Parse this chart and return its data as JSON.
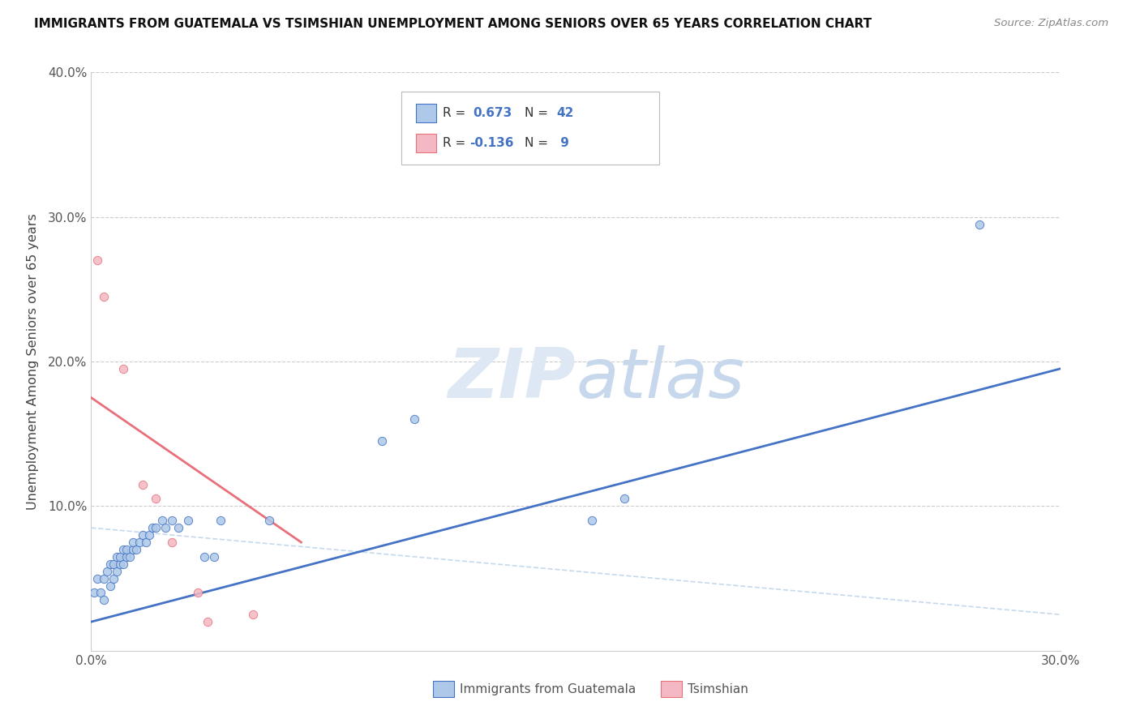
{
  "title": "IMMIGRANTS FROM GUATEMALA VS TSIMSHIAN UNEMPLOYMENT AMONG SENIORS OVER 65 YEARS CORRELATION CHART",
  "source": "Source: ZipAtlas.com",
  "ylabel": "Unemployment Among Seniors over 65 years",
  "xlim": [
    0.0,
    0.3
  ],
  "ylim": [
    0.0,
    0.4
  ],
  "color_blue": "#adc8e8",
  "color_pink": "#f4b8c4",
  "line_blue": "#4472c4",
  "line_pink": "#e8707a",
  "line_dashed": "#c5d9ed",
  "blue_scatter": [
    [
      0.001,
      0.04
    ],
    [
      0.002,
      0.05
    ],
    [
      0.003,
      0.04
    ],
    [
      0.004,
      0.035
    ],
    [
      0.004,
      0.05
    ],
    [
      0.005,
      0.055
    ],
    [
      0.006,
      0.045
    ],
    [
      0.006,
      0.06
    ],
    [
      0.007,
      0.05
    ],
    [
      0.007,
      0.06
    ],
    [
      0.008,
      0.055
    ],
    [
      0.008,
      0.065
    ],
    [
      0.009,
      0.06
    ],
    [
      0.009,
      0.065
    ],
    [
      0.01,
      0.06
    ],
    [
      0.01,
      0.07
    ],
    [
      0.011,
      0.065
    ],
    [
      0.011,
      0.07
    ],
    [
      0.012,
      0.065
    ],
    [
      0.013,
      0.07
    ],
    [
      0.013,
      0.075
    ],
    [
      0.014,
      0.07
    ],
    [
      0.015,
      0.075
    ],
    [
      0.016,
      0.08
    ],
    [
      0.017,
      0.075
    ],
    [
      0.018,
      0.08
    ],
    [
      0.019,
      0.085
    ],
    [
      0.02,
      0.085
    ],
    [
      0.022,
      0.09
    ],
    [
      0.023,
      0.085
    ],
    [
      0.025,
      0.09
    ],
    [
      0.027,
      0.085
    ],
    [
      0.03,
      0.09
    ],
    [
      0.035,
      0.065
    ],
    [
      0.038,
      0.065
    ],
    [
      0.04,
      0.09
    ],
    [
      0.055,
      0.09
    ],
    [
      0.09,
      0.145
    ],
    [
      0.1,
      0.16
    ],
    [
      0.155,
      0.09
    ],
    [
      0.165,
      0.105
    ],
    [
      0.275,
      0.295
    ]
  ],
  "pink_scatter": [
    [
      0.002,
      0.27
    ],
    [
      0.004,
      0.245
    ],
    [
      0.01,
      0.195
    ],
    [
      0.016,
      0.115
    ],
    [
      0.02,
      0.105
    ],
    [
      0.025,
      0.075
    ],
    [
      0.033,
      0.04
    ],
    [
      0.036,
      0.02
    ],
    [
      0.05,
      0.025
    ]
  ],
  "blue_line_x": [
    0.0,
    0.3
  ],
  "blue_line_y": [
    0.02,
    0.195
  ],
  "pink_line_x": [
    0.0,
    0.065
  ],
  "pink_line_y": [
    0.175,
    0.075
  ],
  "dash_line_x": [
    0.0,
    0.3
  ],
  "dash_line_y": [
    0.085,
    0.025
  ]
}
